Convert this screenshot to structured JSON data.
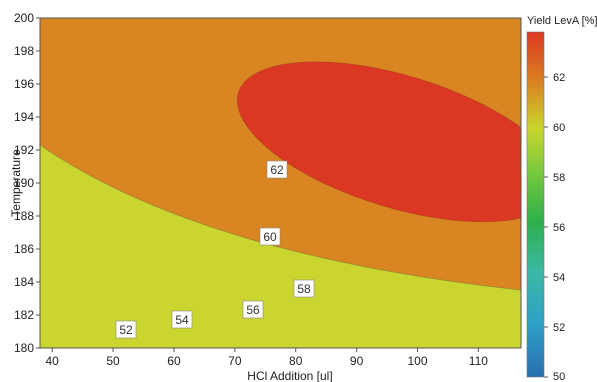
{
  "chart_data": {
    "type": "contour",
    "title": "",
    "xlabel": "HCl Addition [ul]",
    "ylabel": "Temperature",
    "xlim": [
      38,
      117
    ],
    "ylim": [
      180,
      200
    ],
    "x_ticks": [
      40,
      50,
      60,
      70,
      80,
      90,
      100,
      110
    ],
    "y_ticks": [
      180,
      182,
      184,
      186,
      188,
      190,
      192,
      194,
      196,
      198,
      200
    ],
    "colorbar": {
      "title": "Yield LevA [%]",
      "range": [
        50,
        63.8
      ],
      "ticks": [
        50,
        52,
        54,
        56,
        58,
        60,
        62
      ]
    },
    "contour_levels": [
      50,
      52,
      54,
      56,
      58,
      60,
      62
    ],
    "contour_labels": [
      "52",
      "54",
      "56",
      "58",
      "60",
      "62"
    ],
    "max_region": {
      "level_min": 62,
      "center": [
        97,
        192.5
      ],
      "approx_max": 63.5
    },
    "colors": {
      "below_50": "#2a6fb0",
      "50_52": "#2e9fc6",
      "52_54": "#3bb8a6",
      "54_56": "#2eb04c",
      "56_58": "#7cc93d",
      "58_60": "#cad530",
      "60_62": "#d98521",
      "above_62": "#db3823"
    }
  }
}
